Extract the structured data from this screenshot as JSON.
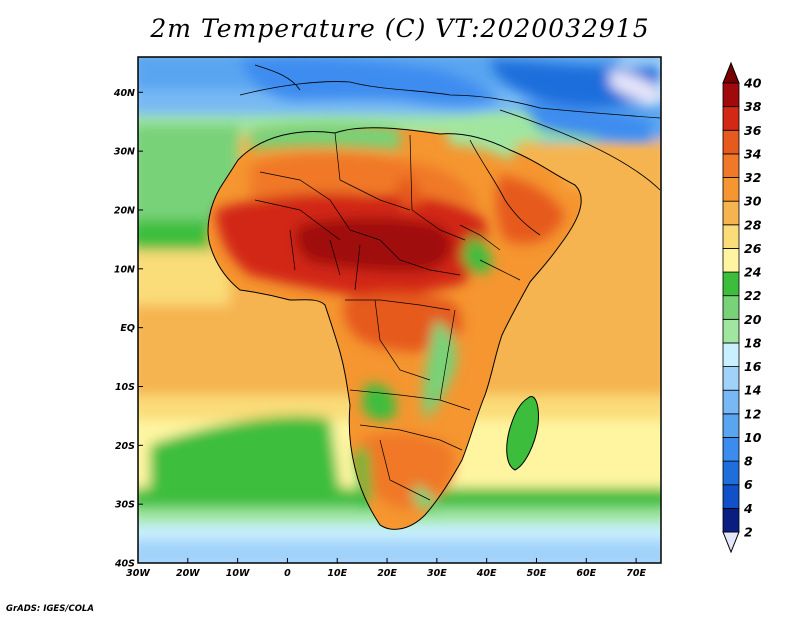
{
  "title": "2m Temperature (C) VT:2020032915",
  "credit": "GrADS: IGES/COLA",
  "map": {
    "lon_range": [
      -30,
      75
    ],
    "lat_range": [
      -40,
      46
    ],
    "lon_ticks": [
      "30W",
      "20W",
      "10W",
      "0",
      "10E",
      "20E",
      "30E",
      "40E",
      "50E",
      "60E",
      "70E"
    ],
    "lat_ticks": [
      "40N",
      "30N",
      "20N",
      "10N",
      "EQ",
      "10S",
      "20S",
      "30S",
      "40S"
    ],
    "lon_tick_values": [
      -30,
      -20,
      -10,
      0,
      10,
      20,
      30,
      40,
      50,
      60,
      70
    ],
    "lat_tick_values": [
      40,
      30,
      20,
      10,
      0,
      -10,
      -20,
      -30,
      -40
    ]
  },
  "colorbar": {
    "levels": [
      2,
      4,
      6,
      8,
      10,
      12,
      14,
      16,
      18,
      20,
      22,
      24,
      26,
      28,
      30,
      32,
      34,
      36,
      38,
      40
    ],
    "labels": [
      "2",
      "4",
      "6",
      "8",
      "10",
      "12",
      "14",
      "16",
      "18",
      "20",
      "22",
      "24",
      "26",
      "28",
      "30",
      "32",
      "34",
      "36",
      "38",
      "40"
    ],
    "colors": [
      "#e6e6fa",
      "#0a1e82",
      "#1050c8",
      "#1e6edc",
      "#3c8cf0",
      "#5aa5f0",
      "#78b9f5",
      "#a0d2fa",
      "#c8f0ff",
      "#a0e6a0",
      "#78d278",
      "#3cbe3c",
      "#fff5a0",
      "#fadc78",
      "#f5b450",
      "#f59630",
      "#f07828",
      "#e65a1e",
      "#d22814",
      "#a00a0a",
      "#780000"
    ]
  }
}
